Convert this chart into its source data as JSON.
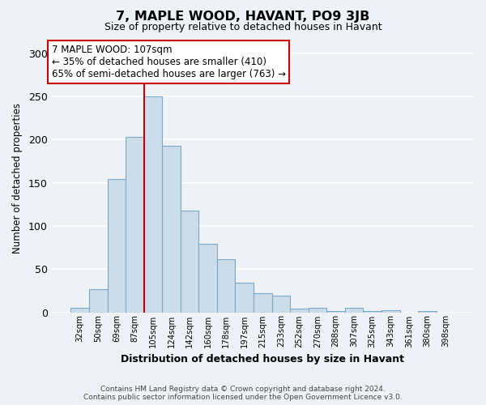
{
  "title": "7, MAPLE WOOD, HAVANT, PO9 3JB",
  "subtitle": "Size of property relative to detached houses in Havant",
  "xlabel": "Distribution of detached houses by size in Havant",
  "ylabel": "Number of detached properties",
  "categories": [
    "32sqm",
    "50sqm",
    "69sqm",
    "87sqm",
    "105sqm",
    "124sqm",
    "142sqm",
    "160sqm",
    "178sqm",
    "197sqm",
    "215sqm",
    "233sqm",
    "252sqm",
    "270sqm",
    "288sqm",
    "307sqm",
    "325sqm",
    "343sqm",
    "361sqm",
    "380sqm",
    "398sqm"
  ],
  "values": [
    5,
    27,
    154,
    203,
    250,
    193,
    118,
    79,
    61,
    34,
    22,
    19,
    4,
    5,
    1,
    5,
    1,
    2,
    0,
    1,
    0
  ],
  "bar_color": "#ccdce8",
  "bar_edge_color": "#7aaac8",
  "highlight_bar_index": 4,
  "highlight_line_color": "#cc0000",
  "annotation_text": "7 MAPLE WOOD: 107sqm\n← 35% of detached houses are smaller (410)\n65% of semi-detached houses are larger (763) →",
  "annotation_box_color": "#ffffff",
  "annotation_box_edge": "#cc0000",
  "ylim": [
    0,
    310
  ],
  "footnote": "Contains HM Land Registry data © Crown copyright and database right 2024.\nContains public sector information licensed under the Open Government Licence v3.0.",
  "background_color": "#eef2f7",
  "grid_color": "#ffffff"
}
